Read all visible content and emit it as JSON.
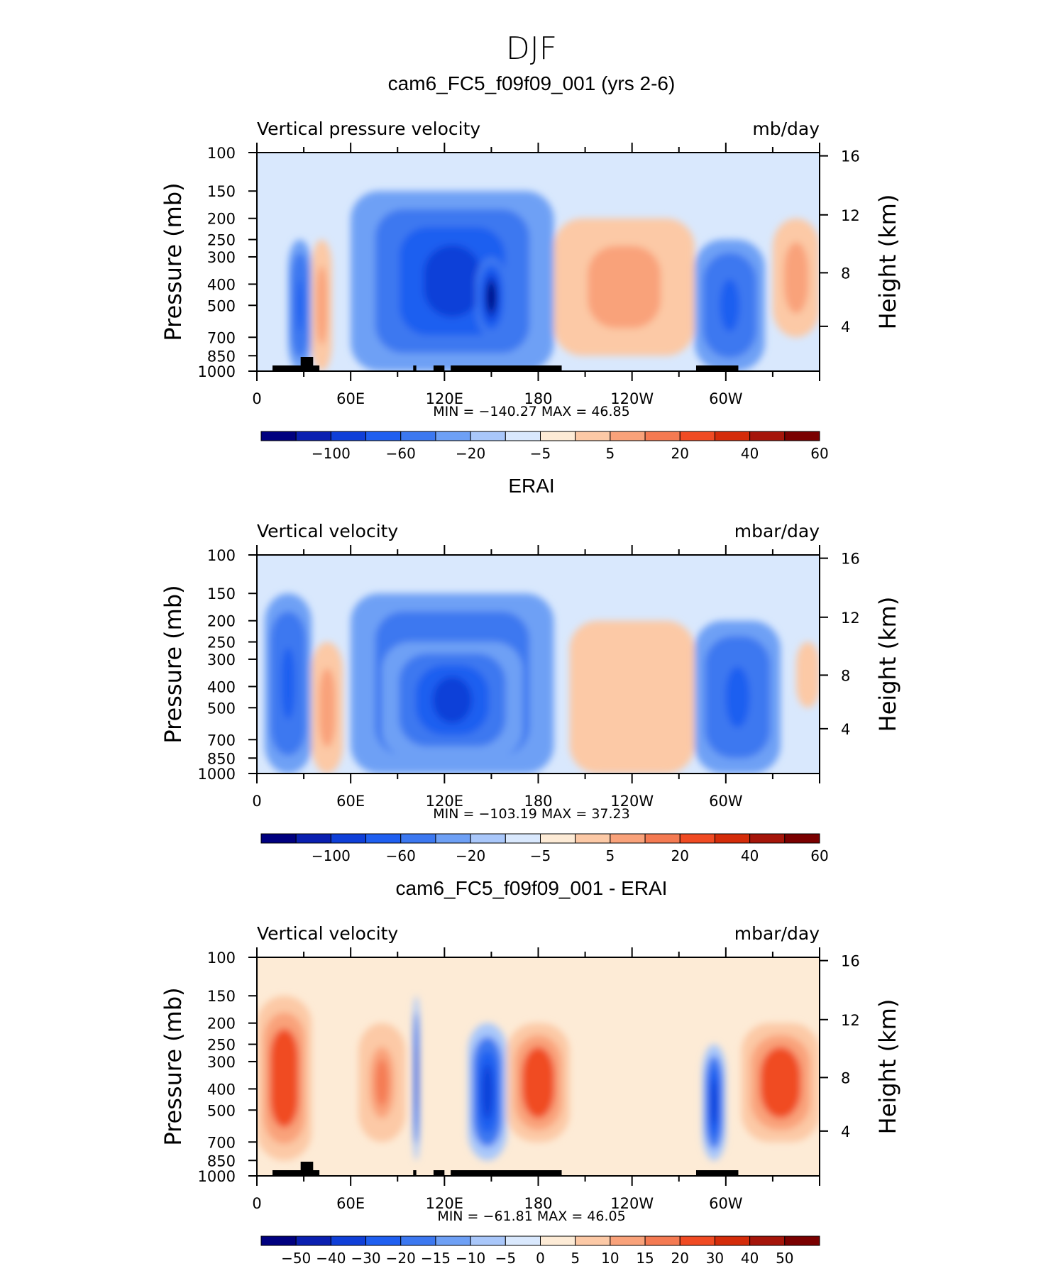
{
  "figure": {
    "title": "DJF"
  },
  "axes_common": {
    "y_ticks": [
      "100",
      "150",
      "200",
      "250",
      "300",
      "400",
      "500",
      "700",
      "850",
      "1000"
    ],
    "y_tick_values": [
      100,
      150,
      200,
      250,
      300,
      400,
      500,
      700,
      850,
      1000
    ],
    "y_label": "Pressure (mb)",
    "x_ticks": [
      "0",
      "60E",
      "120E",
      "180",
      "120W",
      "60W"
    ],
    "x_tick_values": [
      0,
      60,
      120,
      180,
      240,
      300
    ],
    "right_ticks": [
      "16",
      "12",
      "8",
      "4"
    ],
    "right_tick_values": [
      16,
      12,
      8,
      4
    ],
    "right_label": "Height (km)"
  },
  "panels": [
    {
      "title": "cam6_FC5_f09f09_001 (yrs 2-6)",
      "left_label": "Vertical pressure velocity",
      "units": "mb/day",
      "stats": "MIN = −140.27   MAX =   46.85",
      "colorbar_labels": [
        "−100",
        "−60",
        "−20",
        "−5",
        "5",
        "20",
        "40",
        "60"
      ]
    },
    {
      "title": "ERAI",
      "left_label": "Vertical velocity",
      "units": "mbar/day",
      "stats": "MIN = −103.19   MAX =   37.23",
      "colorbar_labels": [
        "−100",
        "−60",
        "−20",
        "−5",
        "5",
        "20",
        "40",
        "60"
      ]
    },
    {
      "title": "cam6_FC5_f09f09_001 - ERAI",
      "left_label": "Vertical velocity",
      "units": "mbar/day",
      "stats": "MIN = −61.81   MAX =   46.05",
      "colorbar_labels": [
        "−50",
        "−40",
        "−30",
        "−20",
        "−15",
        "−10",
        "−5",
        "0",
        "5",
        "10",
        "15",
        "20",
        "30",
        "40",
        "50"
      ]
    }
  ],
  "colors": {
    "levels": [
      "#00007f",
      "#0a1fb0",
      "#0f3fd8",
      "#1f5ff0",
      "#3c78f0",
      "#6ea0f5",
      "#a9c7fa",
      "#d9e8fd",
      "#fdebd6",
      "#fcc9a6",
      "#f9a27a",
      "#f47a52",
      "#f04b23",
      "#d42c0a",
      "#a5150a",
      "#7a0000"
    ]
  },
  "chart_data": [
    {
      "type": "heatmap",
      "title": "cam6_FC5_f09f09_001 (yrs 2-6)",
      "quantity": "Vertical pressure velocity",
      "units": "mb/day",
      "x": [
        "0",
        "60E",
        "120E",
        "180",
        "120W",
        "60W"
      ],
      "ylabel": "Pressure (mb)",
      "ylim": [
        1000,
        100
      ],
      "min": -140.27,
      "max": 46.85,
      "colorbar_levels": [
        -100,
        -80,
        -60,
        -40,
        -20,
        -10,
        -5,
        0,
        5,
        10,
        20,
        30,
        40,
        50,
        60
      ],
      "regions": [
        {
          "lon_range": [
            20,
            35
          ],
          "p_range": [
            1000,
            250
          ],
          "value": -40
        },
        {
          "lon_range": [
            35,
            48
          ],
          "p_range": [
            1000,
            250
          ],
          "value": 20
        },
        {
          "lon_range": [
            60,
            190
          ],
          "p_range": [
            1000,
            150
          ],
          "value": -60
        },
        {
          "lon_range": [
            140,
            160
          ],
          "p_range": [
            700,
            300
          ],
          "value": -100
        },
        {
          "lon_range": [
            190,
            280
          ],
          "p_range": [
            850,
            200
          ],
          "value": 20
        },
        {
          "lon_range": [
            280,
            325
          ],
          "p_range": [
            1000,
            250
          ],
          "value": -40
        },
        {
          "lon_range": [
            330,
            360
          ],
          "p_range": [
            700,
            200
          ],
          "value": 20
        }
      ]
    },
    {
      "type": "heatmap",
      "title": "ERAI",
      "quantity": "Vertical velocity",
      "units": "mbar/day",
      "x": [
        "0",
        "60E",
        "120E",
        "180",
        "120W",
        "60W"
      ],
      "ylabel": "Pressure (mb)",
      "ylim": [
        1000,
        100
      ],
      "min": -103.19,
      "max": 37.23,
      "colorbar_levels": [
        -100,
        -80,
        -60,
        -40,
        -20,
        -10,
        -5,
        0,
        5,
        10,
        20,
        30,
        40,
        50,
        60
      ],
      "regions": [
        {
          "lon_range": [
            5,
            35
          ],
          "p_range": [
            1000,
            150
          ],
          "value": -40
        },
        {
          "lon_range": [
            35,
            55
          ],
          "p_range": [
            1000,
            250
          ],
          "value": 20
        },
        {
          "lon_range": [
            60,
            190
          ],
          "p_range": [
            1000,
            150
          ],
          "value": -40
        },
        {
          "lon_range": [
            80,
            170
          ],
          "p_range": [
            850,
            250
          ],
          "value": -60
        },
        {
          "lon_range": [
            200,
            280
          ],
          "p_range": [
            1000,
            200
          ],
          "value": 10
        },
        {
          "lon_range": [
            280,
            335
          ],
          "p_range": [
            1000,
            200
          ],
          "value": -40
        },
        {
          "lon_range": [
            345,
            360
          ],
          "p_range": [
            500,
            250
          ],
          "value": 10
        }
      ]
    },
    {
      "type": "heatmap",
      "title": "cam6_FC5_f09f09_001 - ERAI",
      "quantity": "Vertical velocity",
      "units": "mbar/day",
      "x": [
        "0",
        "60E",
        "120E",
        "180",
        "120W",
        "60W"
      ],
      "ylabel": "Pressure (mb)",
      "ylim": [
        1000,
        100
      ],
      "min": -61.81,
      "max": 46.05,
      "colorbar_levels": [
        -50,
        -40,
        -30,
        -20,
        -15,
        -10,
        -5,
        0,
        5,
        10,
        15,
        20,
        30,
        40,
        50
      ],
      "regions": [
        {
          "lon_range": [
            0,
            35
          ],
          "p_range": [
            850,
            150
          ],
          "value": 30
        },
        {
          "lon_range": [
            65,
            95
          ],
          "p_range": [
            700,
            200
          ],
          "value": 20
        },
        {
          "lon_range": [
            100,
            104
          ],
          "p_range": [
            850,
            150
          ],
          "value": -30
        },
        {
          "lon_range": [
            135,
            160
          ],
          "p_range": [
            850,
            200
          ],
          "value": -30
        },
        {
          "lon_range": [
            160,
            200
          ],
          "p_range": [
            700,
            200
          ],
          "value": 30
        },
        {
          "lon_range": [
            285,
            300
          ],
          "p_range": [
            850,
            250
          ],
          "value": -30
        },
        {
          "lon_range": [
            310,
            360
          ],
          "p_range": [
            700,
            200
          ],
          "value": 30
        }
      ]
    }
  ]
}
